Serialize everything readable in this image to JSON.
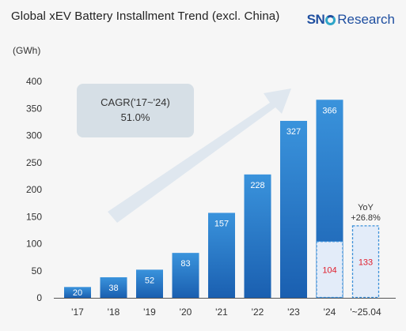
{
  "header": {
    "title": "Global xEV Battery Installment Trend (excl. China)",
    "unit": "(GWh)",
    "logo_brand": "SN",
    "logo_suffix": "Research"
  },
  "colors": {
    "bar_dark": "#1a63b5",
    "bar_light": "#3a8fd9",
    "partial_fill": "#e3ecf9",
    "partial_border": "#3a8fd9",
    "partial_text": "#e01f2d",
    "arrow": "#dde5ee",
    "cagr_box": "#d6dfe6"
  },
  "chart_data": {
    "type": "bar",
    "title": "Global xEV Battery Installment Trend (excl. China)",
    "ylabel": "(GWh)",
    "ylim": [
      0,
      400
    ],
    "yticks": [
      0,
      50,
      100,
      150,
      200,
      250,
      300,
      350,
      400
    ],
    "grid": false,
    "categories": [
      "'17",
      "'18",
      "'19",
      "'20",
      "'21",
      "'22",
      "'23",
      "'24",
      "'~25.04"
    ],
    "values": [
      20,
      38,
      52,
      83,
      157,
      228,
      327,
      366,
      null
    ],
    "partial_values": [
      null,
      null,
      null,
      null,
      null,
      null,
      null,
      104,
      133
    ],
    "annotations": {
      "cagr_label": "CAGR('17~'24)",
      "cagr_value": "51.0%",
      "yoy_label": "YoY",
      "yoy_value": "+26.8%"
    }
  }
}
